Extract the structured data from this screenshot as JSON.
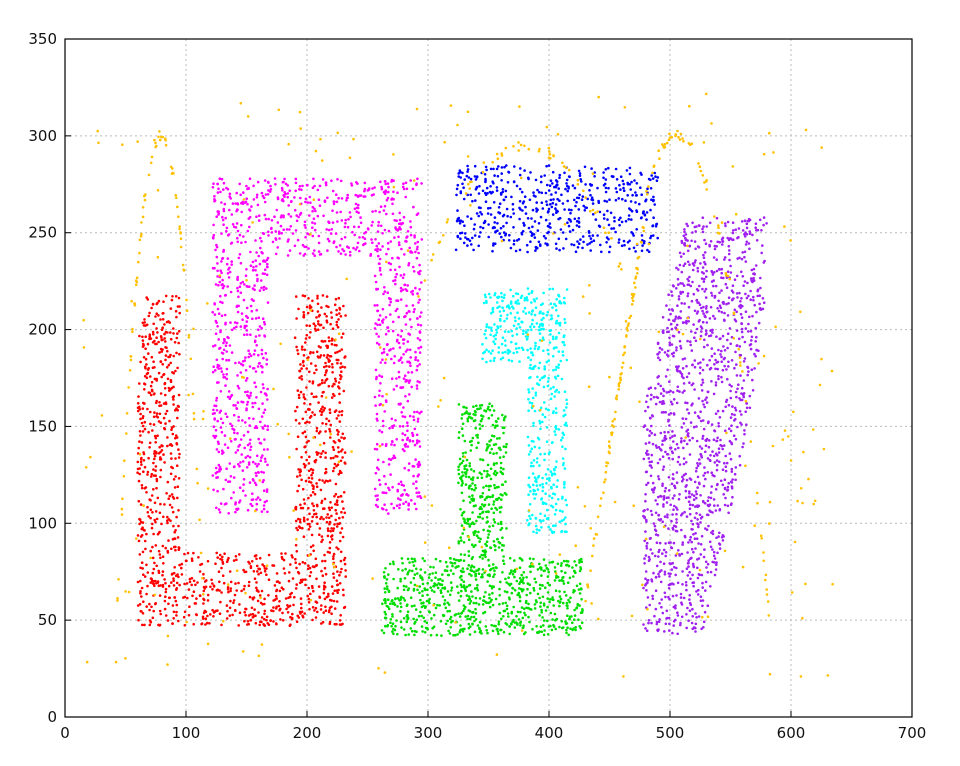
{
  "chart_data": {
    "type": "scatter",
    "title": "",
    "xlabel": "",
    "ylabel": "",
    "xlim": [
      0,
      700
    ],
    "ylim": [
      0,
      350
    ],
    "x_ticks": [
      0,
      100,
      200,
      300,
      400,
      500,
      600,
      700
    ],
    "y_ticks": [
      0,
      50,
      100,
      150,
      200,
      250,
      300,
      350
    ],
    "x_tick_labels": [
      "0",
      "100",
      "200",
      "300",
      "400",
      "500",
      "600",
      "700"
    ],
    "y_tick_labels": [
      "0",
      "50",
      "100",
      "150",
      "200",
      "250",
      "300",
      "350"
    ],
    "grid": true,
    "legend": "none",
    "series": [
      {
        "color": "#ff0000",
        "shape": "U",
        "regions": [
          {
            "x": [
              60,
              95
            ],
            "y": [
              47,
              218
            ]
          },
          {
            "x": [
              60,
              232
            ],
            "y": [
              47,
              85
            ]
          },
          {
            "x": [
              190,
              232
            ],
            "y": [
              47,
              218
            ]
          }
        ],
        "approx_points": 1400
      },
      {
        "color": "#ff00ff",
        "shape": "inverted-U",
        "regions": [
          {
            "x": [
              122,
              168
            ],
            "y": [
              105,
              278
            ]
          },
          {
            "x": [
              122,
              295
            ],
            "y": [
              238,
              278
            ]
          },
          {
            "x": [
              256,
              295
            ],
            "y": [
              105,
              278
            ]
          }
        ],
        "approx_points": 1300
      },
      {
        "color": "#0000ff",
        "shape": "rectangle",
        "regions": [
          {
            "x": [
              323,
              490
            ],
            "y": [
              240,
              285
            ]
          }
        ],
        "approx_points": 550
      },
      {
        "color": "#00ffff",
        "shape": "block",
        "regions": [
          {
            "x": [
              345,
              415
            ],
            "y": [
              183,
              222
            ]
          },
          {
            "x": [
              382,
              415
            ],
            "y": [
              95,
              222
            ]
          }
        ],
        "approx_points": 500
      },
      {
        "color": "#00dd00",
        "shape": "inverted-T",
        "regions": [
          {
            "x": [
              262,
              428
            ],
            "y": [
              42,
              82
            ]
          },
          {
            "x": [
              325,
              365
            ],
            "y": [
              42,
              162
            ]
          }
        ],
        "approx_points": 1100
      },
      {
        "color": "#a020f0",
        "shape": "blob",
        "regions": [
          {
            "x": [
              478,
              580
            ],
            "y": [
              42,
              258
            ]
          }
        ],
        "approx_points": 1300
      },
      {
        "color": "#ffc000",
        "shape": "noise-and-curves",
        "regions": [
          {
            "x": [
              15,
              635
            ],
            "y": [
              20,
              322
            ]
          }
        ],
        "approx_points": 520
      }
    ]
  }
}
